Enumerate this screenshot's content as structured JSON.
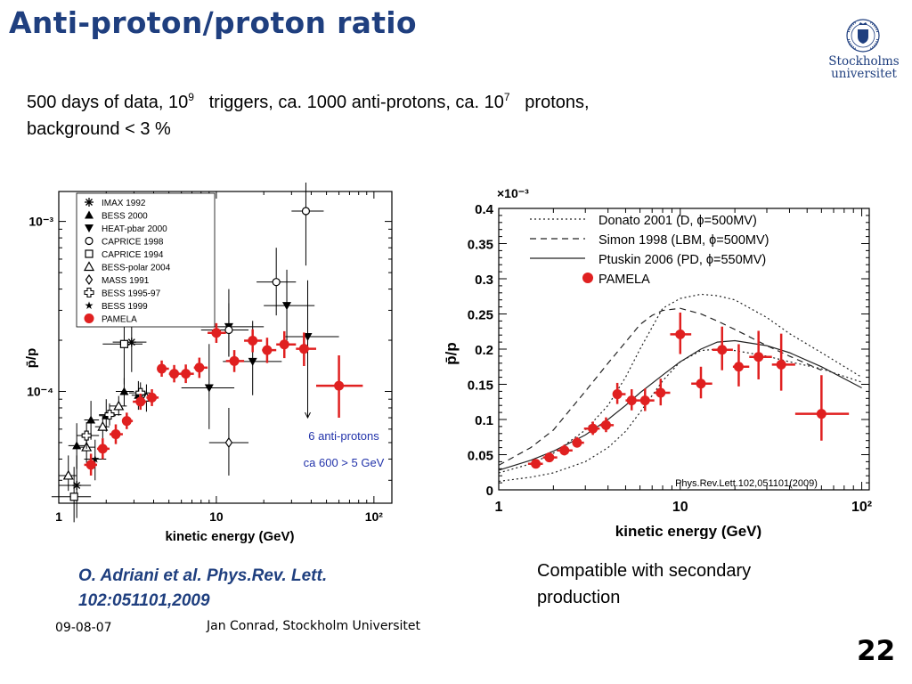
{
  "slide": {
    "title": "Anti-proton/proton ratio",
    "logo_line1": "Stockholms",
    "logo_line2": "universitet",
    "intro": {
      "p1": "500 days of data, 10",
      "sup1": "9",
      "p2": "triggers,  ca. 1000 anti-protons, ca. 10",
      "sup2": "7",
      "p3": "protons,",
      "line2": "background < 3 %"
    },
    "citation_line1": "O. Adriani et al. Phys.Rev. Lett.",
    "citation_line2": "102:051101,2009",
    "compatible_line1": "Compatible with secondary",
    "compatible_line2": "production",
    "footer_date": "09-08-07",
    "footer_author": "Jan Conrad, Stockholm Universitet",
    "slide_number": "22",
    "colors": {
      "title": "#1f3f7f",
      "pamela": "#e02020",
      "annotation": "#2233aa"
    }
  },
  "chart_data": [
    {
      "type": "scatter",
      "yscale": "log",
      "xscale": "log",
      "xlabel": "kinetic energy (GeV)",
      "ylabel": "p̄/p",
      "xlim": [
        1,
        130
      ],
      "ylim": [
        2.2e-05,
        0.0015
      ],
      "x_ticks": [
        {
          "v": 1,
          "label": "1"
        },
        {
          "v": 10,
          "label": "10"
        },
        {
          "v": 100,
          "label": "10²"
        }
      ],
      "y_ticks": [
        {
          "v": 0.0001,
          "label": "10⁻⁴"
        },
        {
          "v": 0.001,
          "label": "10⁻³"
        }
      ],
      "annotation_line1": "6 anti-protons",
      "annotation_line2": "ca 600 > 5 GeV",
      "legend_position": "top-left",
      "legend": [
        {
          "label": "IMAX 1992",
          "marker": "asterisk"
        },
        {
          "label": "BESS 2000",
          "marker": "triangle-up"
        },
        {
          "label": "HEAT-pbar 2000",
          "marker": "triangle-down"
        },
        {
          "label": "CAPRICE 1998",
          "marker": "circle-open"
        },
        {
          "label": "CAPRICE 1994",
          "marker": "square-open"
        },
        {
          "label": "BESS-polar 2004",
          "marker": "triangle-open"
        },
        {
          "label": "MASS 1991",
          "marker": "diamond-open"
        },
        {
          "label": "BESS 1995-97",
          "marker": "cross-open"
        },
        {
          "label": "BESS 1999",
          "marker": "star"
        },
        {
          "label": "PAMELA",
          "marker": "pamela"
        }
      ],
      "series": [
        {
          "name": "IMAX 1992",
          "marker": "asterisk",
          "points": [
            [
              1.3,
              2.8e-05,
              1.8e-05,
              4.2e-05,
              1.0,
              1.6
            ],
            [
              2.9,
              0.000195,
              0.00013,
              0.0003,
              2.2,
              3.6
            ]
          ]
        },
        {
          "name": "BESS 2000",
          "marker": "triangle-up",
          "points": [
            [
              1.3,
              4.8e-05,
              3.5e-05,
              6.5e-05,
              1.15,
              1.5
            ],
            [
              1.6,
              6.8e-05,
              5.2e-05,
              8.8e-05,
              1.45,
              1.8
            ],
            [
              2.0,
              7.2e-05,
              5.8e-05,
              9e-05,
              1.8,
              2.3
            ],
            [
              2.6,
              0.0001,
              8.2e-05,
              0.00012,
              2.3,
              3.0
            ],
            [
              3.2,
              9.5e-05,
              7.8e-05,
              0.000115,
              2.9,
              3.6
            ]
          ]
        },
        {
          "name": "HEAT-pbar 2000",
          "marker": "triangle-down",
          "points": [
            [
              9.0,
              0.000105,
              6e-05,
              0.00019,
              6.0,
              13.0
            ],
            [
              12.0,
              0.00024,
              0.00016,
              0.0004,
              8.0,
              20.0
            ],
            [
              17.0,
              0.00015,
              9.5e-05,
              0.00026,
              11.0,
              26.0
            ],
            [
              28.0,
              0.00032,
              0.0002,
              0.00052,
              20.0,
              42.0
            ],
            [
              38.0,
              0.00021,
              7e-05,
              0.00045,
              27.0,
              60.0
            ]
          ]
        },
        {
          "name": "CAPRICE 1998",
          "marker": "circle-open",
          "points": [
            [
              12.0,
              0.00023,
              0.00016,
              0.00033,
              8.0,
              16.0
            ],
            [
              24.0,
              0.00044,
              0.00028,
              0.0007,
              18.0,
              32.0
            ],
            [
              37.0,
              0.00115,
              0.00055,
              0.0019,
              30.0,
              48.0
            ]
          ]
        },
        {
          "name": "CAPRICE 1994",
          "marker": "square-open",
          "points": [
            [
              1.25,
              2.4e-05,
              1.7e-05,
              3.6e-05,
              0.9,
              1.6
            ],
            [
              2.6,
              0.00019,
              0.00011,
              0.0003,
              1.9,
              3.4
            ]
          ]
        },
        {
          "name": "BESS-polar 2004",
          "marker": "triangle-open",
          "points": [
            [
              1.15,
              3.2e-05,
              2.6e-05,
              4.2e-05,
              1.0,
              1.3
            ],
            [
              1.5,
              4.7e-05,
              3.8e-05,
              5.8e-05,
              1.35,
              1.7
            ],
            [
              1.9,
              6.2e-05,
              5.3e-05,
              7.2e-05,
              1.7,
              2.1
            ],
            [
              2.4,
              8.2e-05,
              7.2e-05,
              9.4e-05,
              2.1,
              2.7
            ],
            [
              3.6,
              9.2e-05,
              7.6e-05,
              0.00011,
              3.2,
              4.2
            ]
          ]
        },
        {
          "name": "MASS 1991",
          "marker": "diamond-open",
          "points": [
            [
              12.0,
              5e-05,
              3.2e-05,
              8e-05,
              9.0,
              16.0
            ]
          ]
        },
        {
          "name": "BESS 1995-97",
          "marker": "cross-open",
          "points": [
            [
              1.5,
              5.5e-05,
              4.6e-05,
              6.6e-05,
              1.3,
              1.8
            ],
            [
              2.1,
              7.3e-05,
              6.3e-05,
              8.5e-05,
              1.8,
              2.5
            ],
            [
              3.3,
              9.8e-05,
              8.5e-05,
              0.000113,
              2.8,
              3.8
            ]
          ]
        },
        {
          "name": "BESS 1999",
          "marker": "star",
          "points": [
            [
              1.7,
              4e-05,
              3e-05,
              5.2e-05,
              1.45,
              2.0
            ]
          ]
        },
        {
          "name": "PAMELA",
          "marker": "pamela",
          "points": [
            [
              1.6,
              3.7e-05,
              3.2e-05,
              4.3e-05,
              1.45,
              1.75
            ],
            [
              1.9,
              4.6e-05,
              4e-05,
              5.3e-05,
              1.75,
              2.1
            ],
            [
              2.3,
              5.6e-05,
              4.9e-05,
              6.4e-05,
              2.1,
              2.55
            ],
            [
              2.7,
              6.7e-05,
              6e-05,
              7.5e-05,
              2.55,
              2.95
            ],
            [
              3.3,
              8.7e-05,
              7.8e-05,
              9.7e-05,
              2.95,
              3.6
            ],
            [
              3.9,
              9.2e-05,
              8.2e-05,
              0.000103,
              3.6,
              4.3
            ],
            [
              4.5,
              0.000136,
              0.000122,
              0.000152,
              4.3,
              5.0
            ],
            [
              5.4,
              0.000127,
              0.000113,
              0.000143,
              5.0,
              6.0
            ],
            [
              6.4,
              0.000127,
              0.000112,
              0.000144,
              6.0,
              7.2
            ],
            [
              7.8,
              0.000138,
              0.00012,
              0.000158,
              7.2,
              8.8
            ],
            [
              10.0,
              0.000221,
              0.000193,
              0.000252,
              8.8,
              11.5
            ],
            [
              13.0,
              0.000151,
              0.00013,
              0.000175,
              11.5,
              15.0
            ],
            [
              17.0,
              0.000199,
              0.00017,
              0.000232,
              15.0,
              19.5
            ],
            [
              21.0,
              0.000175,
              0.000147,
              0.000207,
              19.5,
              24.0
            ],
            [
              27.0,
              0.000189,
              0.000157,
              0.000226,
              24.0,
              32.0
            ],
            [
              36.0,
              0.000178,
              0.000141,
              0.000222,
              32.0,
              43.0
            ],
            [
              60.0,
              0.000108,
              7e-05,
              0.000163,
              43.0,
              85.0
            ]
          ]
        }
      ]
    },
    {
      "type": "line",
      "xscale": "log",
      "xlabel": "kinetic energy (GeV)",
      "ylabel": "p̄/p",
      "y_multiplier": "×10⁻³",
      "xlim": [
        1,
        110
      ],
      "ylim": [
        0,
        0.4
      ],
      "x_ticks": [
        {
          "v": 1,
          "label": "1"
        },
        {
          "v": 10,
          "label": "10"
        },
        {
          "v": 100,
          "label": "10²"
        }
      ],
      "y_ticks": [
        0,
        0.05,
        0.1,
        0.15,
        0.2,
        0.25,
        0.3,
        0.35,
        0.4
      ],
      "y_tick_labels": [
        "0",
        "0.05",
        "0.1",
        "0.15",
        "0.2",
        "0.25",
        "0.3",
        "0.35",
        "0.4"
      ],
      "legend_position": "top-left",
      "reference_text": "Phys.Rev.Lett.102,051101(2009)",
      "legend": [
        {
          "label": "Donato 2001 (D, ϕ=500MV)",
          "style": "dotted"
        },
        {
          "label": "Simon 1998 (LBM, ϕ=500MV)",
          "style": "dashed"
        },
        {
          "label": "Ptuskin 2006 (PD, ϕ=550MV)",
          "style": "solid"
        },
        {
          "label": "PAMELA",
          "style": "pamela"
        }
      ],
      "series": [
        {
          "name": "Donato 2001 (D, ϕ=500MV)",
          "style": "dotted",
          "x": [
            1,
            1.5,
            2,
            3,
            4,
            5,
            6,
            8,
            10,
            13,
            16,
            20,
            30,
            40,
            60,
            100
          ],
          "y": [
            0.024,
            0.037,
            0.052,
            0.085,
            0.12,
            0.16,
            0.2,
            0.258,
            0.272,
            0.278,
            0.276,
            0.27,
            0.245,
            0.222,
            0.195,
            0.16
          ]
        },
        {
          "name": "Donato 2001 (D, ϕ=500MV) lower",
          "style": "dotted",
          "x": [
            1,
            1.5,
            2,
            3,
            4,
            5,
            6,
            8,
            10,
            13,
            16,
            20,
            30,
            40,
            60,
            100
          ],
          "y": [
            0.012,
            0.018,
            0.024,
            0.04,
            0.06,
            0.083,
            0.11,
            0.155,
            0.182,
            0.198,
            0.2,
            0.198,
            0.19,
            0.182,
            0.172,
            0.153
          ]
        },
        {
          "name": "Simon 1998 (LBM, ϕ=500MV)",
          "style": "dashed",
          "x": [
            1,
            1.5,
            2,
            3,
            4,
            5,
            6,
            7,
            8,
            10,
            13,
            16,
            20,
            30,
            40,
            60
          ],
          "y": [
            0.035,
            0.06,
            0.085,
            0.14,
            0.18,
            0.21,
            0.235,
            0.248,
            0.255,
            0.258,
            0.25,
            0.24,
            0.228,
            0.205,
            0.19,
            0.17
          ]
        },
        {
          "name": "Ptuskin 2006 (PD, ϕ=550MV)",
          "style": "solid",
          "x": [
            1,
            1.5,
            2,
            3,
            4,
            5,
            6,
            8,
            10,
            13,
            16,
            20,
            30,
            40,
            60,
            100
          ],
          "y": [
            0.028,
            0.042,
            0.055,
            0.078,
            0.1,
            0.12,
            0.138,
            0.163,
            0.182,
            0.2,
            0.21,
            0.212,
            0.205,
            0.195,
            0.175,
            0.145
          ]
        },
        {
          "name": "PAMELA",
          "style": "pamela",
          "points": [
            [
              1.6,
              0.037,
              0.032,
              0.043,
              1.45,
              1.75
            ],
            [
              1.9,
              0.046,
              0.04,
              0.053,
              1.75,
              2.1
            ],
            [
              2.3,
              0.056,
              0.049,
              0.064,
              2.1,
              2.55
            ],
            [
              2.7,
              0.067,
              0.06,
              0.075,
              2.55,
              2.95
            ],
            [
              3.3,
              0.087,
              0.078,
              0.097,
              2.95,
              3.6
            ],
            [
              3.9,
              0.092,
              0.082,
              0.103,
              3.6,
              4.3
            ],
            [
              4.5,
              0.136,
              0.122,
              0.152,
              4.3,
              5.0
            ],
            [
              5.4,
              0.127,
              0.113,
              0.143,
              5.0,
              6.0
            ],
            [
              6.4,
              0.127,
              0.112,
              0.144,
              6.0,
              7.2
            ],
            [
              7.8,
              0.138,
              0.12,
              0.158,
              7.2,
              8.8
            ],
            [
              10.0,
              0.221,
              0.193,
              0.252,
              8.8,
              11.5
            ],
            [
              13.0,
              0.151,
              0.13,
              0.175,
              11.5,
              15.0
            ],
            [
              17.0,
              0.199,
              0.17,
              0.232,
              15.0,
              19.5
            ],
            [
              21.0,
              0.175,
              0.147,
              0.207,
              19.5,
              24.0
            ],
            [
              27.0,
              0.189,
              0.157,
              0.226,
              24.0,
              32.0
            ],
            [
              36.0,
              0.178,
              0.141,
              0.222,
              32.0,
              43.0
            ],
            [
              60.0,
              0.108,
              0.07,
              0.163,
              43.0,
              85.0
            ]
          ]
        }
      ]
    }
  ]
}
